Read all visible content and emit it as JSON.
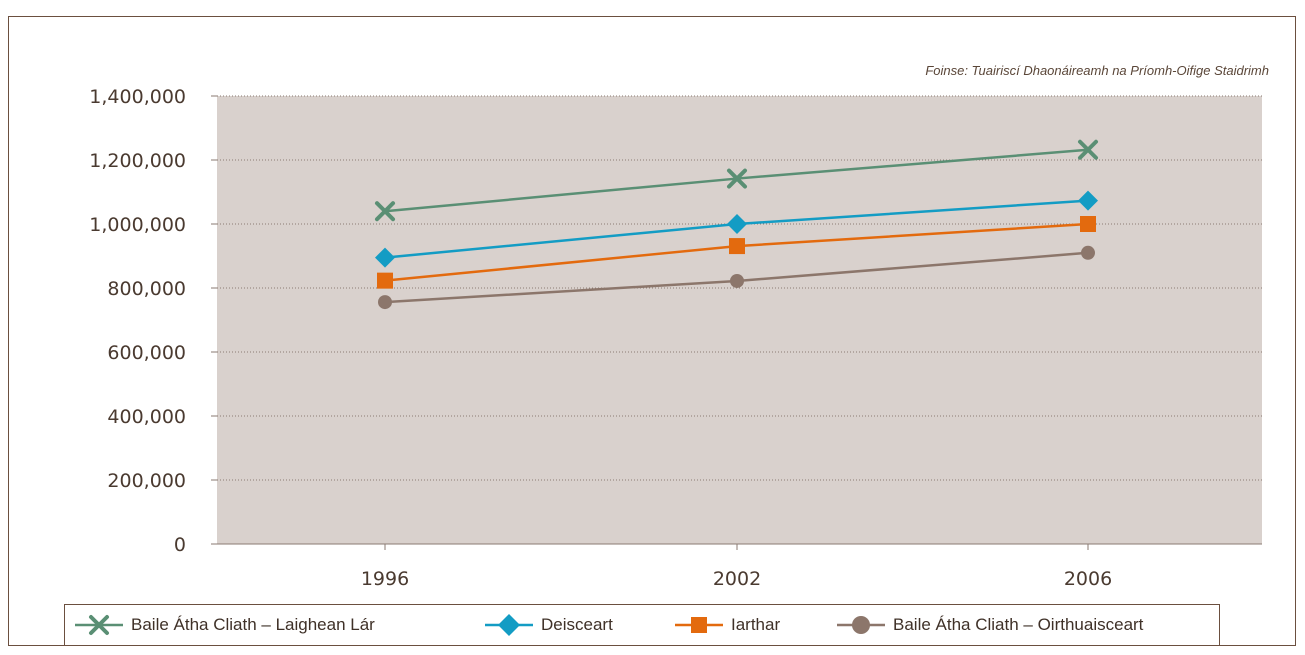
{
  "source_note": "Foinse: Tuairiscí Dhaonáireamh na Príomh-Oifige Staidrimh",
  "chart_data": {
    "type": "line",
    "categories": [
      "1996",
      "2002",
      "2006"
    ],
    "ylim": [
      0,
      1400000
    ],
    "yticks": [
      "0",
      "200,000",
      "400,000",
      "600,000",
      "800,000",
      "1,000,000",
      "1,200,000",
      "1,400,000"
    ],
    "ytick_values": [
      0,
      200000,
      400000,
      600000,
      800000,
      1000000,
      1200000,
      1400000
    ],
    "grid": true,
    "legend_position": "bottom",
    "plot_background": "#d9d1cd",
    "series": [
      {
        "name": "Baile Átha Cliath – Laighean Lár",
        "values": [
          1040000,
          1142000,
          1232000
        ],
        "color": "#5a8f74",
        "marker": "x"
      },
      {
        "name": "Deisceart",
        "values": [
          895000,
          1000000,
          1073000
        ],
        "color": "#139cc4",
        "marker": "diamond"
      },
      {
        "name": "Iarthar",
        "values": [
          823000,
          931000,
          1000000
        ],
        "color": "#e36a0e",
        "marker": "square"
      },
      {
        "name": "Baile Átha Cliath – Oirthuaisceart",
        "values": [
          756000,
          822000,
          910000
        ],
        "color": "#8c766b",
        "marker": "circle"
      }
    ]
  }
}
